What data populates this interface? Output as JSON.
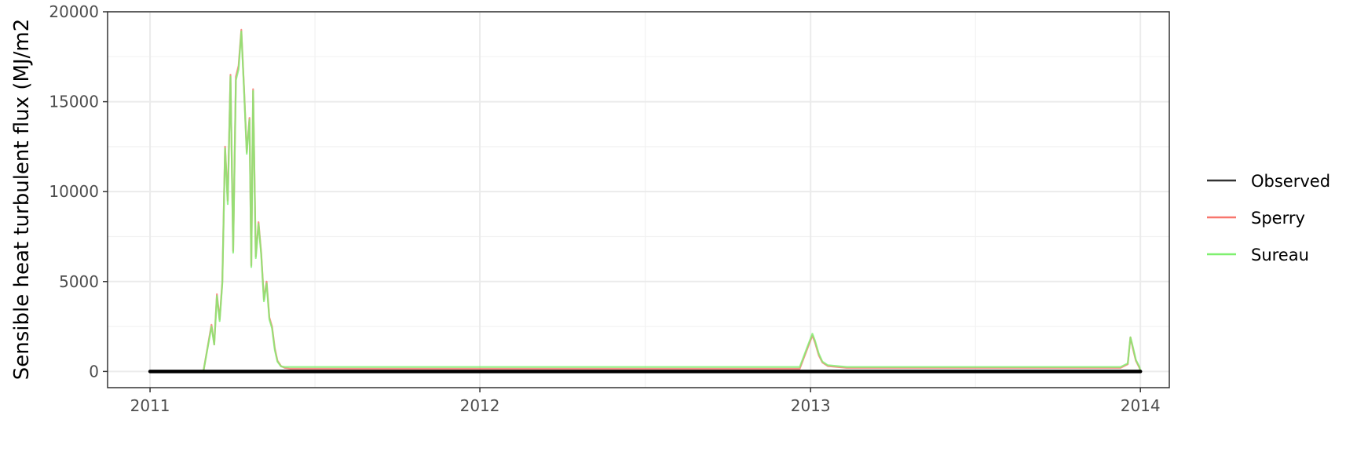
{
  "chart_data": {
    "type": "line",
    "title": "",
    "xlabel": "",
    "ylabel": "Sensible heat turbulent flux (MJ/m2",
    "xlim": [
      "2010-11-15",
      "2014-02-02"
    ],
    "ylim": [
      -900,
      20000
    ],
    "x_ticks": [
      "2011",
      "2012",
      "2013",
      "2014"
    ],
    "x_tick_dates": [
      "2011-01-01",
      "2012-01-01",
      "2013-01-01",
      "2014-01-01"
    ],
    "y_ticks": [
      0,
      5000,
      10000,
      15000,
      20000
    ],
    "y_tick_labels": [
      "0",
      "5000",
      "10000",
      "15000",
      "20000"
    ],
    "grid": true,
    "legend": {
      "position": "right",
      "entries": [
        {
          "label": "Observed",
          "color": "#333333"
        },
        {
          "label": "Sperry",
          "color": "#f8766d"
        },
        {
          "label": "Sureau",
          "color": "#7ff06f"
        }
      ]
    },
    "series": [
      {
        "name": "Observed",
        "color": "#000000",
        "x": [
          "2011-01-01",
          "2011-04-01",
          "2011-07-01",
          "2011-10-01",
          "2012-01-01",
          "2012-04-01",
          "2012-07-01",
          "2012-10-01",
          "2013-01-01",
          "2013-04-01",
          "2013-07-01",
          "2013-10-01",
          "2014-01-01"
        ],
        "y": [
          0,
          0,
          0,
          0,
          0,
          0,
          0,
          0,
          0,
          0,
          0,
          0,
          0
        ]
      },
      {
        "name": "Sperry",
        "color": "#f8766d",
        "x": [
          "2011-01-01",
          "2011-03-01",
          "2011-03-10",
          "2011-03-13",
          "2011-03-16",
          "2011-03-19",
          "2011-03-22",
          "2011-03-25",
          "2011-03-28",
          "2011-03-31",
          "2011-04-03",
          "2011-04-06",
          "2011-04-09",
          "2011-04-12",
          "2011-04-15",
          "2011-04-18",
          "2011-04-21",
          "2011-04-23",
          "2011-04-25",
          "2011-04-28",
          "2011-05-01",
          "2011-05-04",
          "2011-05-07",
          "2011-05-10",
          "2011-05-13",
          "2011-05-16",
          "2011-05-19",
          "2011-05-22",
          "2011-05-26",
          "2011-05-30",
          "2011-06-05",
          "2011-06-20",
          "2012-12-20",
          "2013-01-03",
          "2013-01-06",
          "2013-01-10",
          "2013-01-14",
          "2013-01-20",
          "2013-02-10",
          "2013-12-10",
          "2013-12-18",
          "2013-12-21",
          "2013-12-24",
          "2013-12-27",
          "2013-12-31",
          "2014-01-01"
        ],
        "y": [
          0,
          0,
          2600,
          1500,
          4300,
          2900,
          5000,
          12500,
          9500,
          16500,
          6700,
          16400,
          17000,
          19000,
          15800,
          12200,
          14100,
          5900,
          15700,
          6400,
          8300,
          6600,
          4000,
          5000,
          3000,
          2500,
          1300,
          600,
          300,
          200,
          150,
          150,
          150,
          2000,
          1600,
          900,
          500,
          300,
          200,
          200,
          400,
          1900,
          1200,
          600,
          200,
          0
        ]
      },
      {
        "name": "Sureau",
        "color": "#7ff06f",
        "x": [
          "2011-01-01",
          "2011-03-01",
          "2011-03-10",
          "2011-03-13",
          "2011-03-16",
          "2011-03-19",
          "2011-03-22",
          "2011-03-25",
          "2011-03-28",
          "2011-03-31",
          "2011-04-03",
          "2011-04-06",
          "2011-04-09",
          "2011-04-12",
          "2011-04-15",
          "2011-04-18",
          "2011-04-21",
          "2011-04-23",
          "2011-04-25",
          "2011-04-28",
          "2011-05-01",
          "2011-05-04",
          "2011-05-07",
          "2011-05-10",
          "2011-05-13",
          "2011-05-16",
          "2011-05-19",
          "2011-05-22",
          "2011-05-26",
          "2011-05-30",
          "2011-06-05",
          "2011-06-20",
          "2012-12-20",
          "2013-01-03",
          "2013-01-06",
          "2013-01-10",
          "2013-01-14",
          "2013-01-20",
          "2013-02-10",
          "2013-12-10",
          "2013-12-18",
          "2013-12-21",
          "2013-12-24",
          "2013-12-27",
          "2013-12-31",
          "2014-01-01"
        ],
        "y": [
          0,
          0,
          2500,
          1500,
          4200,
          2800,
          4900,
          12400,
          9300,
          16400,
          6600,
          16200,
          16800,
          18900,
          15700,
          12100,
          14000,
          5800,
          15600,
          6300,
          8200,
          6500,
          3900,
          4900,
          2900,
          2400,
          1200,
          550,
          280,
          250,
          250,
          250,
          250,
          2100,
          1700,
          1000,
          550,
          350,
          250,
          250,
          450,
          1900,
          1300,
          650,
          250,
          0
        ]
      }
    ]
  }
}
